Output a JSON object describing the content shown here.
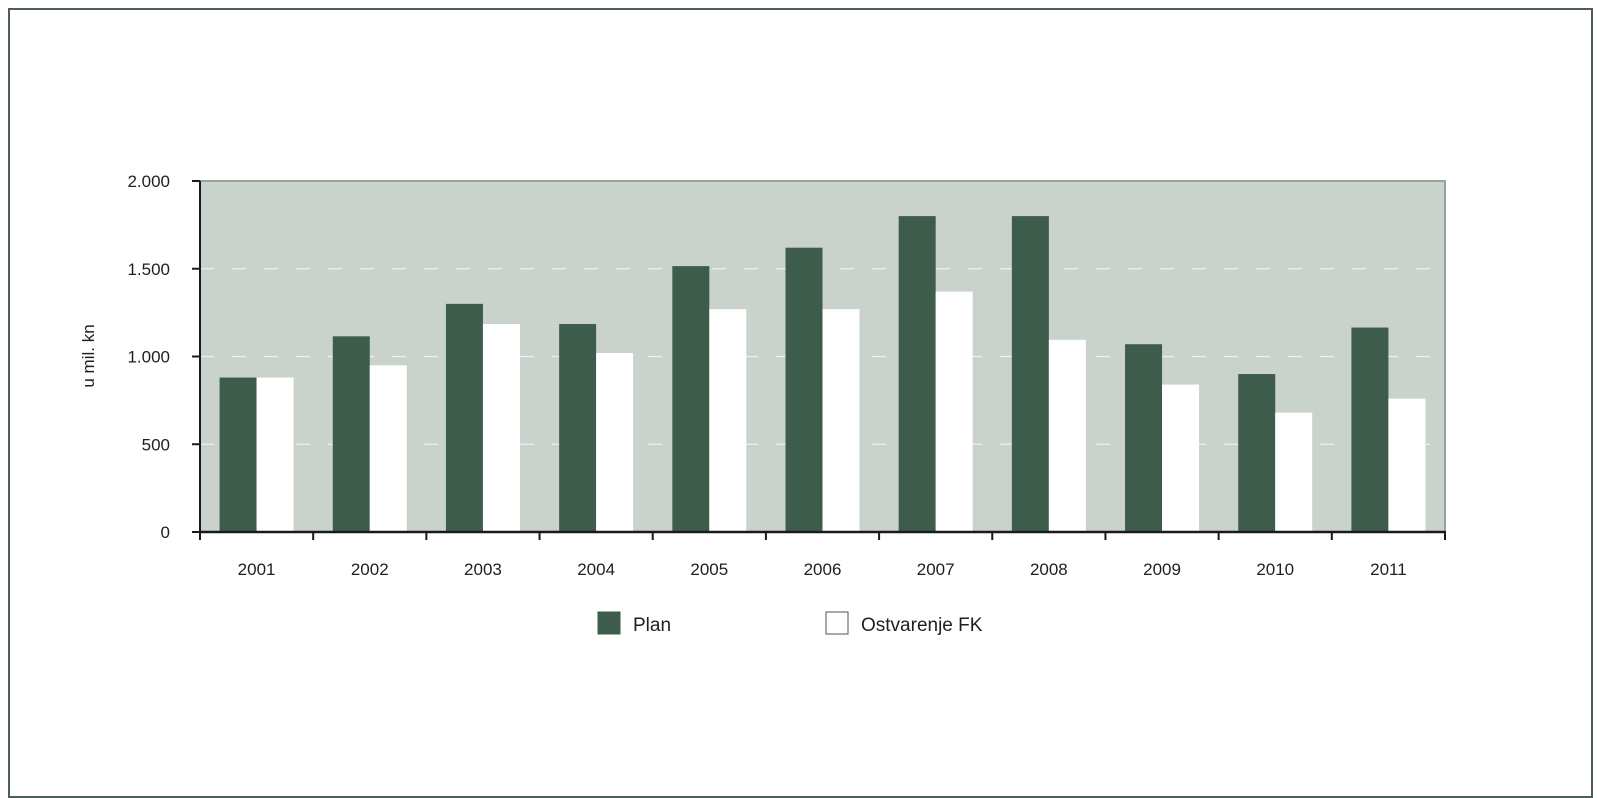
{
  "chart_data": {
    "type": "bar",
    "title": "",
    "xlabel": "",
    "ylabel": "u mil. kn",
    "categories": [
      "2001",
      "2002",
      "2003",
      "2004",
      "2005",
      "2006",
      "2007",
      "2008",
      "2009",
      "2010",
      "2011"
    ],
    "series": [
      {
        "name": "Plan",
        "color": "#3e5c4c",
        "values": [
          880,
          1115,
          1300,
          1185,
          1515,
          1620,
          1800,
          1800,
          1070,
          900,
          1165
        ]
      },
      {
        "name": "Ostvarenje FK",
        "color": "#ffffff",
        "values": [
          880,
          950,
          1185,
          1020,
          1270,
          1270,
          1370,
          1095,
          840,
          680,
          760
        ]
      }
    ],
    "ylim": [
      0,
      2000
    ],
    "yticks": [
      0,
      500,
      1000,
      1500,
      2000
    ],
    "ytick_labels": [
      "0",
      "500",
      "1.000",
      "1.500",
      "2.000"
    ],
    "plot_background": "#c9d2cb",
    "grid": "dashed horizontal",
    "legend_position": "bottom"
  }
}
